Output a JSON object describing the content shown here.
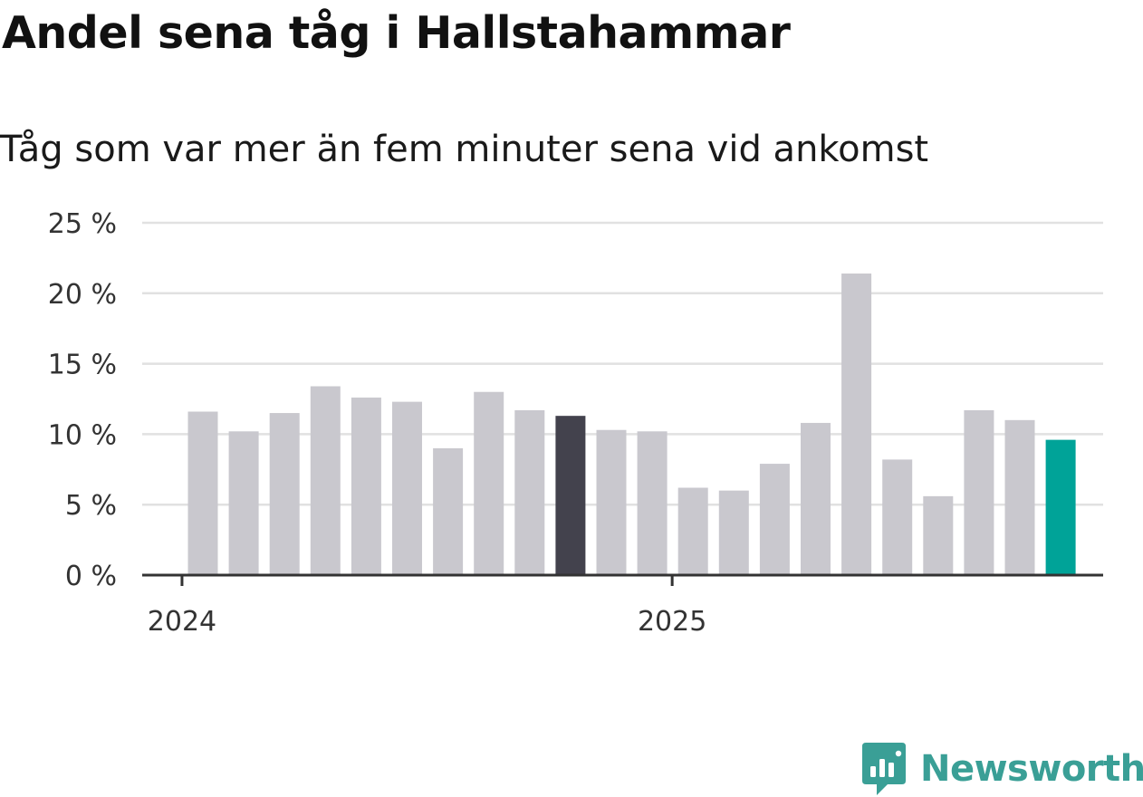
{
  "title": "Andel sena tåg i Hallstahammar",
  "subtitle": "Tåg som var mer än fem minuter sena vid ankomst",
  "colors": {
    "bar_default": "#c9c8ce",
    "bar_highlight_dark": "#43424d",
    "bar_highlight_accent": "#00a398",
    "gridline": "#e1e1e1",
    "axis": "#333333",
    "logo": "#3a9f96"
  },
  "chart_data": {
    "type": "bar",
    "categories": [
      "2024-01",
      "2024-02",
      "2024-03",
      "2024-04",
      "2024-05",
      "2024-06",
      "2024-07",
      "2024-08",
      "2024-09",
      "2024-10",
      "2024-11",
      "2024-12",
      "2025-01",
      "2025-02",
      "2025-03",
      "2025-04",
      "2025-05",
      "2025-06",
      "2025-07",
      "2025-08",
      "2025-09",
      "2025-10"
    ],
    "values": [
      11.6,
      10.2,
      11.5,
      13.4,
      12.6,
      12.3,
      9.0,
      13.0,
      11.7,
      11.3,
      10.3,
      10.2,
      6.2,
      6.0,
      7.9,
      10.8,
      21.4,
      8.2,
      5.6,
      11.7,
      11.0,
      9.6
    ],
    "highlight": {
      "2024-10": "dark",
      "2025-10": "accent"
    },
    "ylim": [
      0,
      25
    ],
    "yticks": [
      0,
      5,
      10,
      15,
      20,
      25
    ],
    "ytick_labels": [
      "0 %",
      "5 %",
      "10 %",
      "15 %",
      "20 %",
      "25 %"
    ],
    "xtick_labels": [
      {
        "label": "2024",
        "at": "2024-01"
      },
      {
        "label": "2025",
        "at": "2025-01"
      }
    ],
    "grid": true,
    "xlabel": "",
    "ylabel": ""
  },
  "logo": {
    "icon": "newsworthy-chart-icon",
    "text": "Newsworthy"
  }
}
